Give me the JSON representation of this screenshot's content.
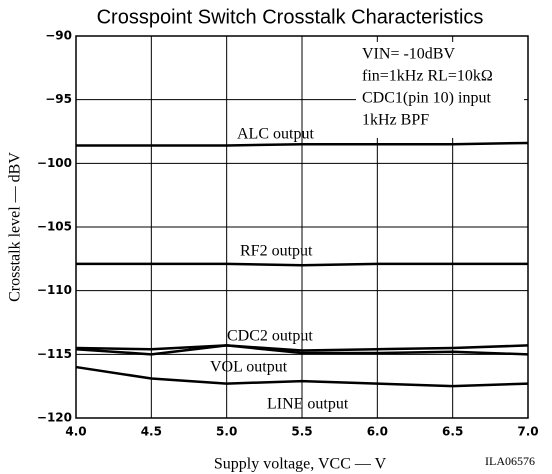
{
  "chart_data": {
    "type": "line",
    "title": "Crosspoint Switch Crosstalk Characteristics",
    "x_label": "Supply voltage, VCC — V",
    "y_label": "Crosstalk level — dBV",
    "figure_code": "ILA06576",
    "annotations": [
      "VIN= -10dBV",
      "fin=1kHz RL=10kΩ",
      "CDC1(pin 10) input",
      "1kHz BPF"
    ],
    "x": [
      4,
      4.5,
      5,
      5.5,
      6,
      6.5,
      7
    ],
    "series": [
      {
        "name": "ALC output",
        "color": "#000000",
        "values": [
          -98.6,
          -98.6,
          -98.6,
          -98.5,
          -98.5,
          -98.5,
          -98.4
        ]
      },
      {
        "name": "RF2 output",
        "color": "#000000",
        "values": [
          -107.9,
          -107.9,
          -107.9,
          -108.0,
          -107.9,
          -107.9,
          -107.9
        ]
      },
      {
        "name": "CDC2 output",
        "color": "#000000",
        "values": [
          -114.5,
          -114.6,
          -114.3,
          -114.7,
          -114.6,
          -114.5,
          -114.3
        ]
      },
      {
        "name": "VOL output",
        "color": "#000000",
        "values": [
          -114.6,
          -115.0,
          -114.3,
          -114.9,
          -114.9,
          -114.8,
          -115.0
        ]
      },
      {
        "name": "LINE output",
        "color": "#000000",
        "values": [
          -116.0,
          -116.9,
          -117.3,
          -117.1,
          -117.3,
          -117.5,
          -117.3
        ]
      }
    ],
    "xlim": [
      4,
      7
    ],
    "ylim": [
      -120,
      -90
    ],
    "xticks": [
      {
        "value": 4,
        "label": "4.0"
      },
      {
        "value": 4.5,
        "label": "4.5"
      },
      {
        "value": 5,
        "label": "5.0"
      },
      {
        "value": 5.5,
        "label": "5.5"
      },
      {
        "value": 6,
        "label": "6.0"
      },
      {
        "value": 6.5,
        "label": "6.5"
      },
      {
        "value": 7,
        "label": "7.0"
      }
    ],
    "yticks": [
      {
        "value": -120,
        "label": "−120"
      },
      {
        "value": -115,
        "label": "−115"
      },
      {
        "value": -110,
        "label": "−110"
      },
      {
        "value": -105,
        "label": "−105"
      },
      {
        "value": -100,
        "label": "−100"
      },
      {
        "value": -95,
        "label": "−95"
      },
      {
        "value": -90,
        "label": "−90"
      }
    ],
    "grid": true
  }
}
